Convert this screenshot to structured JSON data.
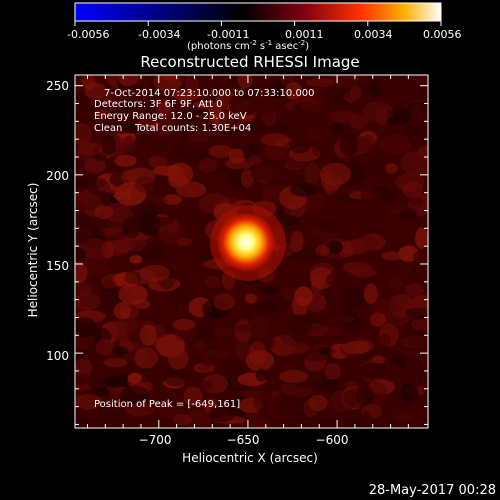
{
  "colorbar": {
    "ticks": [
      "-0.0056",
      "-0.0034",
      "-0.0011",
      "0.0011",
      "0.0034",
      "0.0056"
    ],
    "units_prefix": "(photons cm",
    "units_exp1": "-2",
    "units_mid": " s",
    "units_exp2": "-1",
    "units_mid2": " asec",
    "units_exp3": "-2",
    "units_suffix": ")",
    "stops": [
      "#0000ff",
      "#000000",
      "#7a0010",
      "#ff3000",
      "#ffb000",
      "#ffffff"
    ]
  },
  "title": "Reconstructed RHESSI Image",
  "info": {
    "time_range": "7-Oct-2014 07:23:10.000 to 07:33:10.000",
    "detectors": "Detectors: 3F 6F 9F, Att 0",
    "energy": "Energy Range: 12.0 - 25.0 keV",
    "clean": "Clean    Total counts: 1.30E+04",
    "peak": "Position of Peak = [-649,161]"
  },
  "footer_date": "28-May-2017 00:28",
  "chart_data": {
    "type": "heatmap",
    "title": "Reconstructed RHESSI Image",
    "xlabel": "Heliocentric X (arcsec)",
    "ylabel": "Heliocentric Y (arcsec)",
    "xlim": [
      -747,
      -549
    ],
    "ylim": [
      58,
      256
    ],
    "xticks": [
      -700,
      -650,
      -600
    ],
    "xtick_labels": [
      "−700",
      "−650",
      "−600"
    ],
    "yticks": [
      100,
      150,
      200,
      250
    ],
    "ytick_labels": [
      "100",
      "150",
      "200",
      "250"
    ],
    "colorbar_range": [
      -0.0056,
      0.0056
    ],
    "peak": {
      "x": -649,
      "y": 161
    },
    "colormap": "hessi red-temperature"
  }
}
